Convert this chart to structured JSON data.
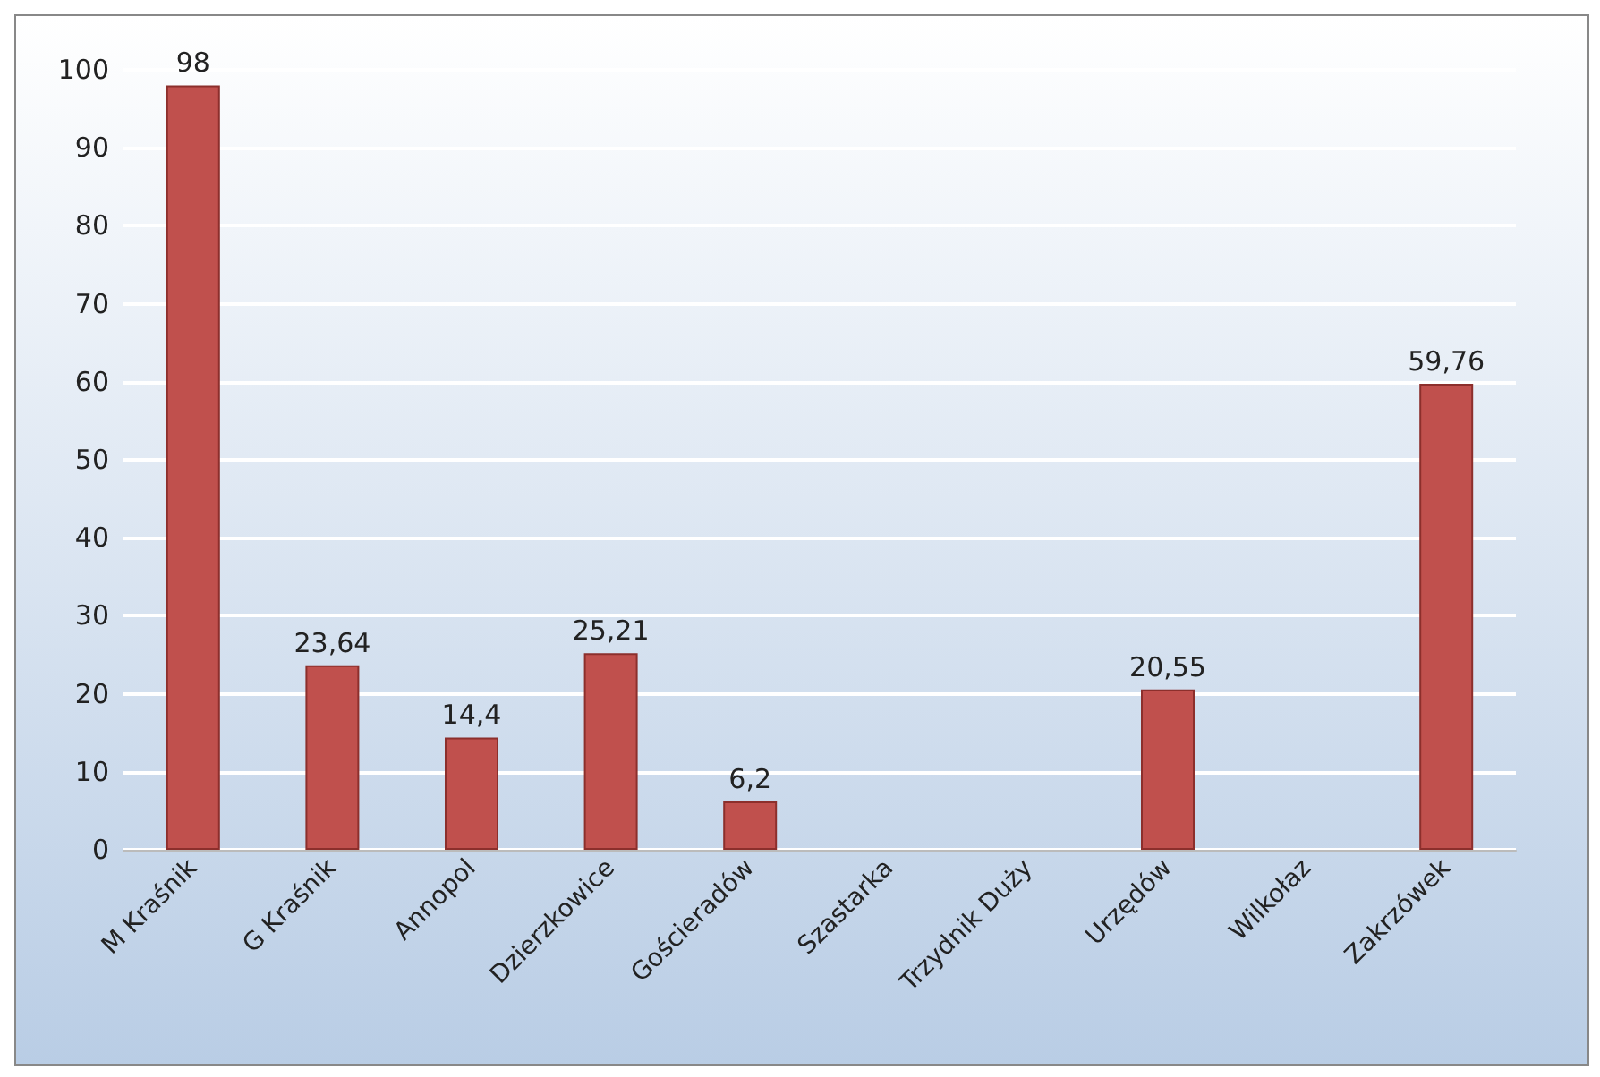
{
  "chart_data": {
    "type": "bar",
    "categories": [
      "M Kraśnik",
      "G Kraśnik",
      "Annopol",
      "Dzierzkowice",
      "Gościeradów",
      "Szastarka",
      "Trzydnik Duży",
      "Urzędów",
      "Wilkołaz",
      "Zakrzówek"
    ],
    "values": [
      98,
      23.64,
      14.4,
      25.21,
      6.2,
      null,
      null,
      20.55,
      null,
      59.76
    ],
    "value_labels": [
      "98",
      "23,64",
      "14,4",
      "25,21",
      "6,2",
      null,
      null,
      "20,55",
      null,
      "59,76"
    ],
    "color": "#c0504d",
    "ylim": [
      0,
      100
    ],
    "yticks": [
      0,
      10,
      20,
      30,
      40,
      50,
      60,
      70,
      80,
      90,
      100
    ],
    "grid": true
  }
}
